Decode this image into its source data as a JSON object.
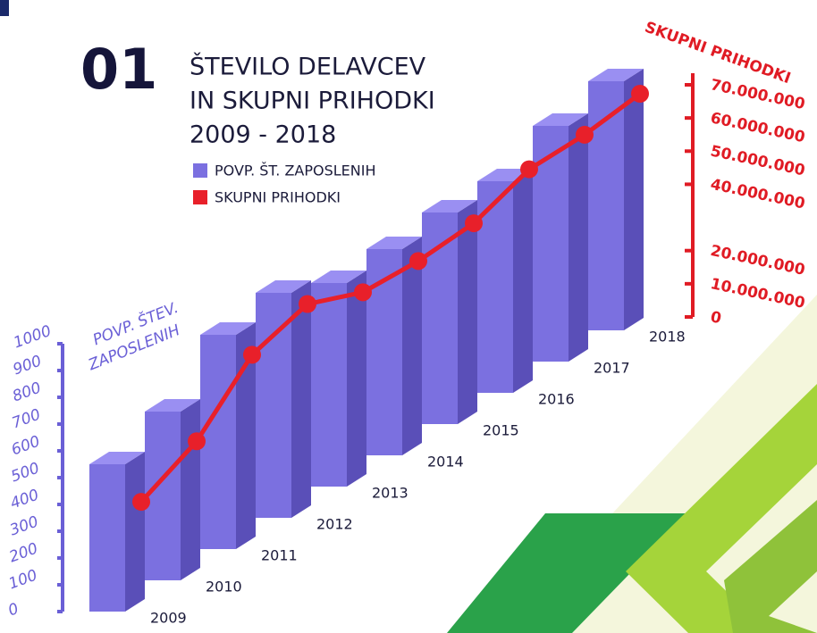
{
  "chart_data": {
    "type": "bar-line",
    "number": "01",
    "title_lines": [
      "ŠTEVILO DELAVCEV",
      "IN SKUPNI PRIHODKI",
      "2009 - 2018"
    ],
    "categories": [
      "2009",
      "2010",
      "2011",
      "2012",
      "2013",
      "2014",
      "2015",
      "2016",
      "2017",
      "2018"
    ],
    "series": [
      {
        "name": "POVP. ŠT. ZAPOSLENIH",
        "color": "#7b70e0",
        "values": [
          550,
          630,
          800,
          840,
          760,
          770,
          790,
          790,
          880,
          930
        ]
      },
      {
        "name": "SKUPNI PRIHODKI",
        "color": "#e8202a",
        "axis": "y2",
        "values": [
          31000000,
          40000000,
          57000000,
          63000000,
          57000000,
          57000000,
          59000000,
          66000000,
          67000000,
          70000000
        ]
      }
    ],
    "ylabel_lines": [
      "POVP. ŠTEV.",
      "ZAPOSLENIH"
    ],
    "y2label": "SKUPNI PRIHODKI",
    "ylim": [
      0,
      1000
    ],
    "yticks": [
      0,
      100,
      200,
      300,
      400,
      500,
      600,
      700,
      800,
      900,
      1000
    ],
    "y2lim": [
      0,
      70000000
    ],
    "y2ticks": [
      {
        "value": 0,
        "label": "0"
      },
      {
        "value": 10000000,
        "label": "10.000.000"
      },
      {
        "value": 20000000,
        "label": "20.000.000"
      },
      {
        "value": 40000000,
        "label": "40.000.000"
      },
      {
        "value": 50000000,
        "label": "50.000.000"
      },
      {
        "value": 60000000,
        "label": "60.000.000"
      },
      {
        "value": 70000000,
        "label": "70.000.000"
      }
    ]
  }
}
